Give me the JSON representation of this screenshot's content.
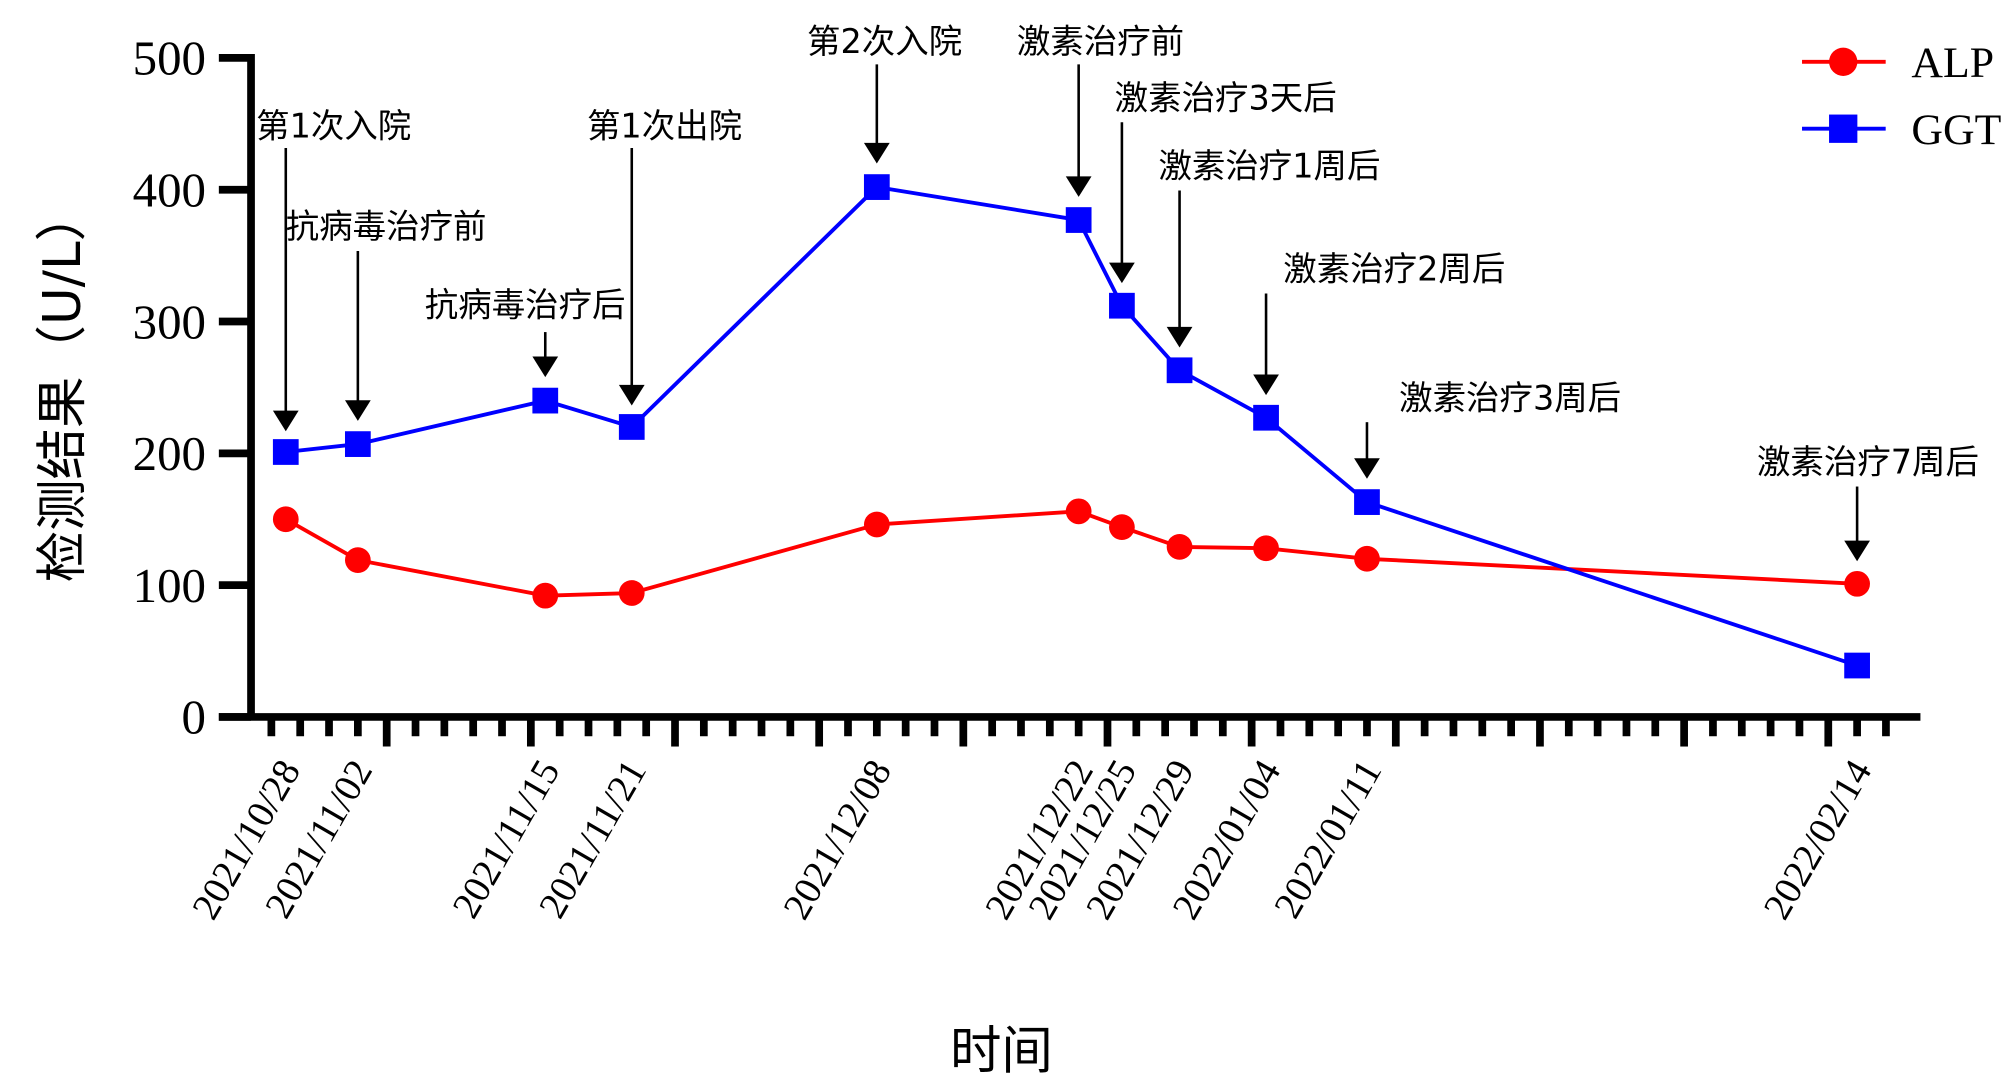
{
  "chart_data": {
    "type": "line",
    "title": "",
    "xlabel": "时间",
    "ylabel": "检测结果（U/L）",
    "ylim": [
      0,
      500
    ],
    "yticks": [
      0,
      100,
      200,
      300,
      400,
      500
    ],
    "grid": false,
    "legend_position": "top-right",
    "x": [
      "2021/10/28",
      "2021/11/02",
      "2021/11/15",
      "2021/11/21",
      "2021/12/08",
      "2021/12/22",
      "2021/12/25",
      "2021/12/29",
      "2022/01/04",
      "2022/01/11",
      "2022/02/14"
    ],
    "series": [
      {
        "name": "ALP",
        "color": "#ff0000",
        "marker": "circle",
        "values": [
          150,
          119,
          92,
          94,
          146,
          156,
          144,
          129,
          128,
          120,
          101
        ]
      },
      {
        "name": "GGT",
        "color": "#0000ff",
        "marker": "square",
        "values": [
          201,
          207,
          240,
          220,
          402,
          377,
          312,
          263,
          227,
          163,
          39
        ]
      }
    ],
    "annotations": [
      {
        "date": "2021/10/28",
        "text": "第1次入院"
      },
      {
        "date": "2021/11/02",
        "text": "抗病毒治疗前"
      },
      {
        "date": "2021/11/15",
        "text": "抗病毒治疗后"
      },
      {
        "date": "2021/11/21",
        "text": "第1次出院"
      },
      {
        "date": "2021/12/08",
        "text": "第2次入院"
      },
      {
        "date": "2021/12/22",
        "text": "激素治疗前"
      },
      {
        "date": "2021/12/25",
        "text": "激素治疗3天后"
      },
      {
        "date": "2021/12/29",
        "text": "激素治疗1周后"
      },
      {
        "date": "2022/01/04",
        "text": "激素治疗2周后"
      },
      {
        "date": "2022/01/11",
        "text": "激素治疗3周后"
      },
      {
        "date": "2022/02/14",
        "text": "激素治疗7周后"
      }
    ]
  }
}
